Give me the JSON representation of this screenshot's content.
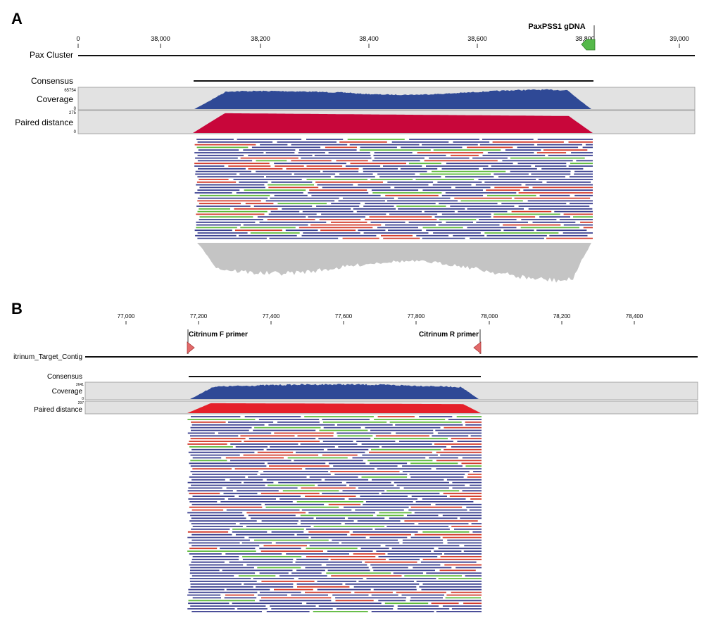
{
  "panelA": {
    "letter": "A",
    "ruler_ticks": [
      "0",
      "38,000",
      "38,200",
      "38,400",
      "38,600",
      "38,800",
      "39,000"
    ],
    "feature_label": "PaxPSS1 gDNA",
    "track_name": "Pax Cluster",
    "consensus_label": "Consensus",
    "coverage_label": "Coverage",
    "coverage_max": "65754",
    "coverage_min": "0",
    "paired_label": "Paired distance",
    "paired_max": "275",
    "paired_min": "0"
  },
  "panelB": {
    "letter": "B",
    "ruler_ticks": [
      "77,000",
      "77,200",
      "77,400",
      "77,600",
      "77,800",
      "78,000",
      "78,200",
      "78,400"
    ],
    "primer_f_label": "Citrinum F primer",
    "primer_r_label": "Citrinum R primer",
    "track_name": "itrinum_Target_Contig",
    "consensus_label": "Consensus",
    "coverage_label": "Coverage",
    "coverage_max": "2641",
    "coverage_min": "0",
    "paired_label": "Paired distance",
    "paired_max": "297"
  },
  "colors": {
    "coverage": "#2f4996",
    "paired_a": "#c8063a",
    "paired_b": "#e5202a",
    "read_forward": "#3a3f8f",
    "read_reverse": "#d23a2b",
    "read_unpaired": "#5cb83a",
    "feature_gene": "#55b94a",
    "primer": "#e26a6a",
    "track_bg": "#e2e2e2",
    "depth_shadow": "#c4c4c4"
  }
}
